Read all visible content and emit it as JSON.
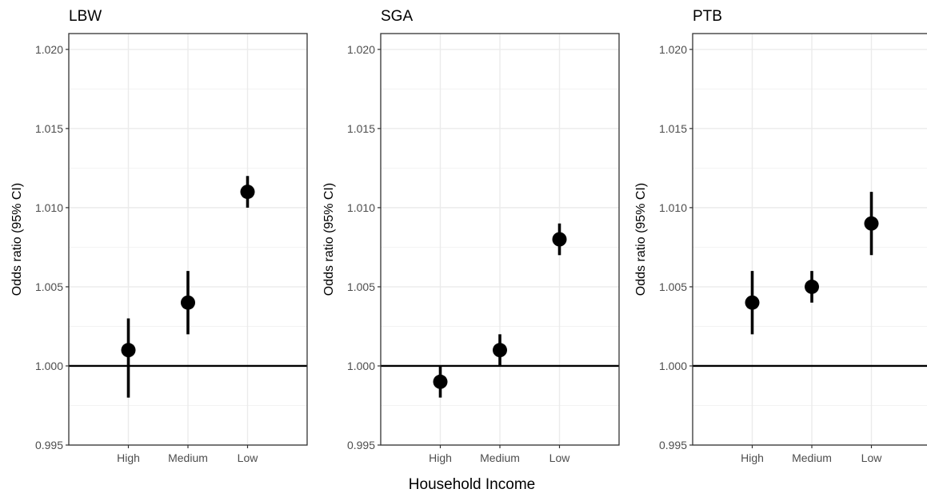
{
  "chart_data": {
    "type": "scatter",
    "style": "point-range",
    "xlabel": "Household Income",
    "categories": [
      "High",
      "Medium",
      "Low"
    ],
    "ylim": [
      0.995,
      1.021
    ],
    "yticks": [
      0.995,
      1.0,
      1.005,
      1.01,
      1.015,
      1.02
    ],
    "ytick_labels": [
      "0.995",
      "1.000",
      "1.005",
      "1.010",
      "1.015",
      "1.020"
    ],
    "reference_line": 1.0,
    "grid": true,
    "point_color": "#000000",
    "panels": [
      {
        "title": "LBW",
        "ylabel": "Odds ratio (95% CI)",
        "points": [
          {
            "category": "High",
            "estimate": 1.001,
            "lower": 0.998,
            "upper": 1.003
          },
          {
            "category": "Medium",
            "estimate": 1.004,
            "lower": 1.002,
            "upper": 1.006
          },
          {
            "category": "Low",
            "estimate": 1.011,
            "lower": 1.01,
            "upper": 1.012
          }
        ]
      },
      {
        "title": "SGA",
        "ylabel": "Odds ratio (95% CI)",
        "points": [
          {
            "category": "High",
            "estimate": 0.999,
            "lower": 0.998,
            "upper": 1.0
          },
          {
            "category": "Medium",
            "estimate": 1.001,
            "lower": 1.0,
            "upper": 1.002
          },
          {
            "category": "Low",
            "estimate": 1.008,
            "lower": 1.007,
            "upper": 1.009
          }
        ]
      },
      {
        "title": "PTB",
        "ylabel": "Odds ratio (95% CI)",
        "points": [
          {
            "category": "High",
            "estimate": 1.004,
            "lower": 1.002,
            "upper": 1.006
          },
          {
            "category": "Medium",
            "estimate": 1.005,
            "lower": 1.004,
            "upper": 1.006
          },
          {
            "category": "Low",
            "estimate": 1.009,
            "lower": 1.007,
            "upper": 1.011
          }
        ]
      }
    ]
  }
}
